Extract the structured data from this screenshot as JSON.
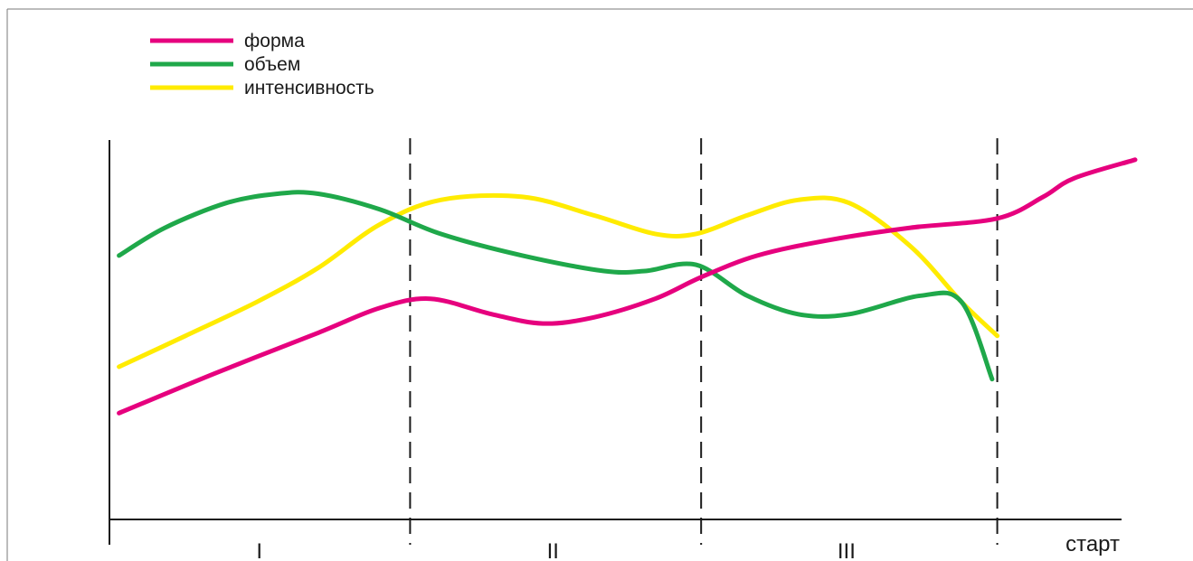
{
  "chart_data": {
    "type": "line",
    "title": "",
    "xlabel": "старт",
    "ylabel": "",
    "xlim": [
      0,
      100
    ],
    "ylim": [
      0,
      100
    ],
    "grid": false,
    "legend_position": "top-left",
    "phases": [
      {
        "label": "I",
        "from": 0,
        "to": 29
      },
      {
        "label": "II",
        "from": 29,
        "to": 57.5
      },
      {
        "label": "III",
        "from": 57.5,
        "to": 86.5
      }
    ],
    "series": [
      {
        "name": "форма",
        "color": "#e6007e",
        "points": [
          [
            0.5,
            16
          ],
          [
            10,
            29
          ],
          [
            20,
            42
          ],
          [
            26,
            50
          ],
          [
            31,
            53
          ],
          [
            37,
            48
          ],
          [
            42,
            45
          ],
          [
            47,
            47
          ],
          [
            53,
            53
          ],
          [
            57.5,
            60
          ],
          [
            63,
            67
          ],
          [
            70,
            72
          ],
          [
            78,
            76
          ],
          [
            86.5,
            79
          ],
          [
            91,
            86
          ],
          [
            94,
            92
          ],
          [
            100,
            98
          ]
        ]
      },
      {
        "name": "объем",
        "color": "#1fa84a",
        "points": [
          [
            0.5,
            67
          ],
          [
            5,
            76
          ],
          [
            11,
            84
          ],
          [
            16,
            87
          ],
          [
            20,
            87
          ],
          [
            26,
            82
          ],
          [
            32,
            74
          ],
          [
            40,
            67
          ],
          [
            48,
            62
          ],
          [
            52,
            62
          ],
          [
            57,
            64
          ],
          [
            62,
            54
          ],
          [
            67,
            48
          ],
          [
            72,
            48
          ],
          [
            79,
            54
          ],
          [
            83,
            52
          ],
          [
            86,
            27
          ]
        ]
      },
      {
        "name": "интенсивность",
        "color": "#ffeb00",
        "points": [
          [
            0.5,
            31
          ],
          [
            7,
            41
          ],
          [
            14,
            52
          ],
          [
            20,
            63
          ],
          [
            26,
            77
          ],
          [
            32,
            85
          ],
          [
            40,
            86
          ],
          [
            47,
            80
          ],
          [
            53,
            74
          ],
          [
            57,
            74
          ],
          [
            62,
            80
          ],
          [
            67,
            85
          ],
          [
            72,
            84
          ],
          [
            78,
            70
          ],
          [
            83,
            52
          ],
          [
            86.5,
            41
          ]
        ]
      }
    ]
  }
}
